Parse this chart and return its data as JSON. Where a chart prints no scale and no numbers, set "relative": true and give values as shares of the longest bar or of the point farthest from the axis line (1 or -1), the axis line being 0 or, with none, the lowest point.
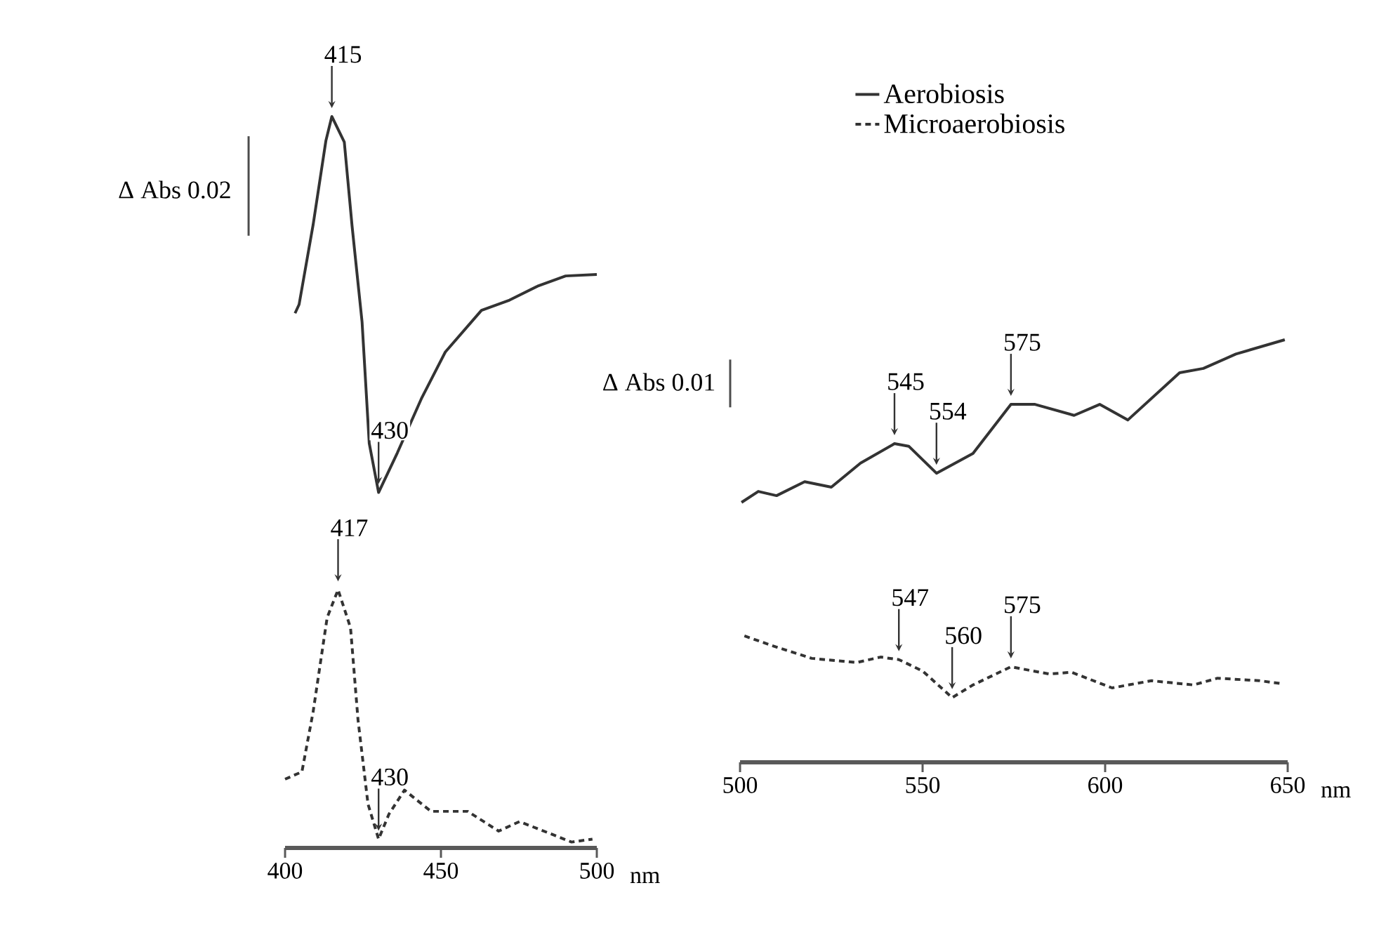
{
  "chart_data": [
    {
      "type": "line",
      "relative": true,
      "xlabel": "nm",
      "xlim": [
        400,
        500
      ],
      "xticks": [
        400,
        450,
        500
      ],
      "legend": false,
      "series": [
        {
          "color": "#333333",
          "line_style": "solid",
          "x": [
            403.2,
            404.5,
            409.0,
            413.1,
            415,
            419,
            421.5,
            424.7,
            427,
            430,
            436,
            443.7,
            451.4,
            463,
            472,
            481,
            490,
            500
          ],
          "values": [
            0.731,
            0.743,
            0.852,
            0.967,
            1.0,
            0.965,
            0.85,
            0.719,
            0.553,
            0.486,
            0.54,
            0.614,
            0.678,
            0.735,
            0.749,
            0.768,
            0.782,
            0.784
          ]
        },
        {
          "color": "#333333",
          "line_style": "dashed",
          "x": [
            400,
            405.4,
            409,
            413.5,
            417,
            421,
            423.4,
            426.6,
            430,
            433.3,
            438.3,
            446.8,
            458.6,
            468.5,
            475.2,
            484.2,
            491.9,
            498.6
          ],
          "values": [
            0.094,
            0.104,
            0.186,
            0.315,
            0.353,
            0.301,
            0.175,
            0.06,
            0.012,
            0.046,
            0.079,
            0.05,
            0.05,
            0.023,
            0.036,
            0.021,
            0.008,
            0.012
          ]
        }
      ],
      "annotations": [
        "Δ Abs 0.02",
        {
          "text": "415",
          "x": 415,
          "y": 1.0
        },
        {
          "text": "430",
          "x": 430,
          "y": 0.486
        },
        {
          "text": "417",
          "x": 417,
          "y": 0.353
        },
        {
          "text": "430",
          "x": 430,
          "y": 0.012
        }
      ]
    },
    {
      "type": "line",
      "relative": true,
      "xlabel": "nm",
      "xlim": [
        500,
        650
      ],
      "xticks": [
        500,
        550,
        600,
        650
      ],
      "legend": "top",
      "series": [
        {
          "name": "Aerobiosis",
          "color": "#333333",
          "line_style": "solid",
          "x": [
            500.4,
            505,
            510,
            517.7,
            525,
            533,
            542.3,
            546.2,
            553.8,
            563.8,
            574.2,
            580.8,
            591.5,
            598.5,
            606.2,
            620.4,
            626.9,
            635.8,
            649.2
          ],
          "values": [
            0.615,
            0.641,
            0.631,
            0.664,
            0.651,
            0.708,
            0.754,
            0.748,
            0.684,
            0.731,
            0.847,
            0.847,
            0.821,
            0.847,
            0.81,
            0.922,
            0.932,
            0.966,
            1.0
          ]
        },
        {
          "name": "Microaerobiosis",
          "color": "#333333",
          "line_style": "dashed",
          "x": [
            501.2,
            508.8,
            519.6,
            531.9,
            538.5,
            543.5,
            550,
            558.1,
            563.8,
            574.2,
            584.6,
            590.8,
            601.9,
            612.7,
            624.2,
            630.8,
            642.3,
            648.5
          ],
          "values": [
            0.299,
            0.276,
            0.246,
            0.236,
            0.249,
            0.243,
            0.216,
            0.153,
            0.183,
            0.226,
            0.209,
            0.213,
            0.176,
            0.193,
            0.183,
            0.199,
            0.193,
            0.186
          ]
        }
      ],
      "annotations": [
        "Δ Abs 0.01",
        {
          "text": "545",
          "x": 542.3,
          "y": 0.754
        },
        {
          "text": "554",
          "x": 553.8,
          "y": 0.684
        },
        {
          "text": "575",
          "x": 574.2,
          "y": 0.847
        },
        {
          "text": "547",
          "x": 543.5,
          "y": 0.243
        },
        {
          "text": "560",
          "x": 558.1,
          "y": 0.153
        },
        {
          "text": "575",
          "x": 574.2,
          "y": 0.226
        }
      ]
    }
  ]
}
